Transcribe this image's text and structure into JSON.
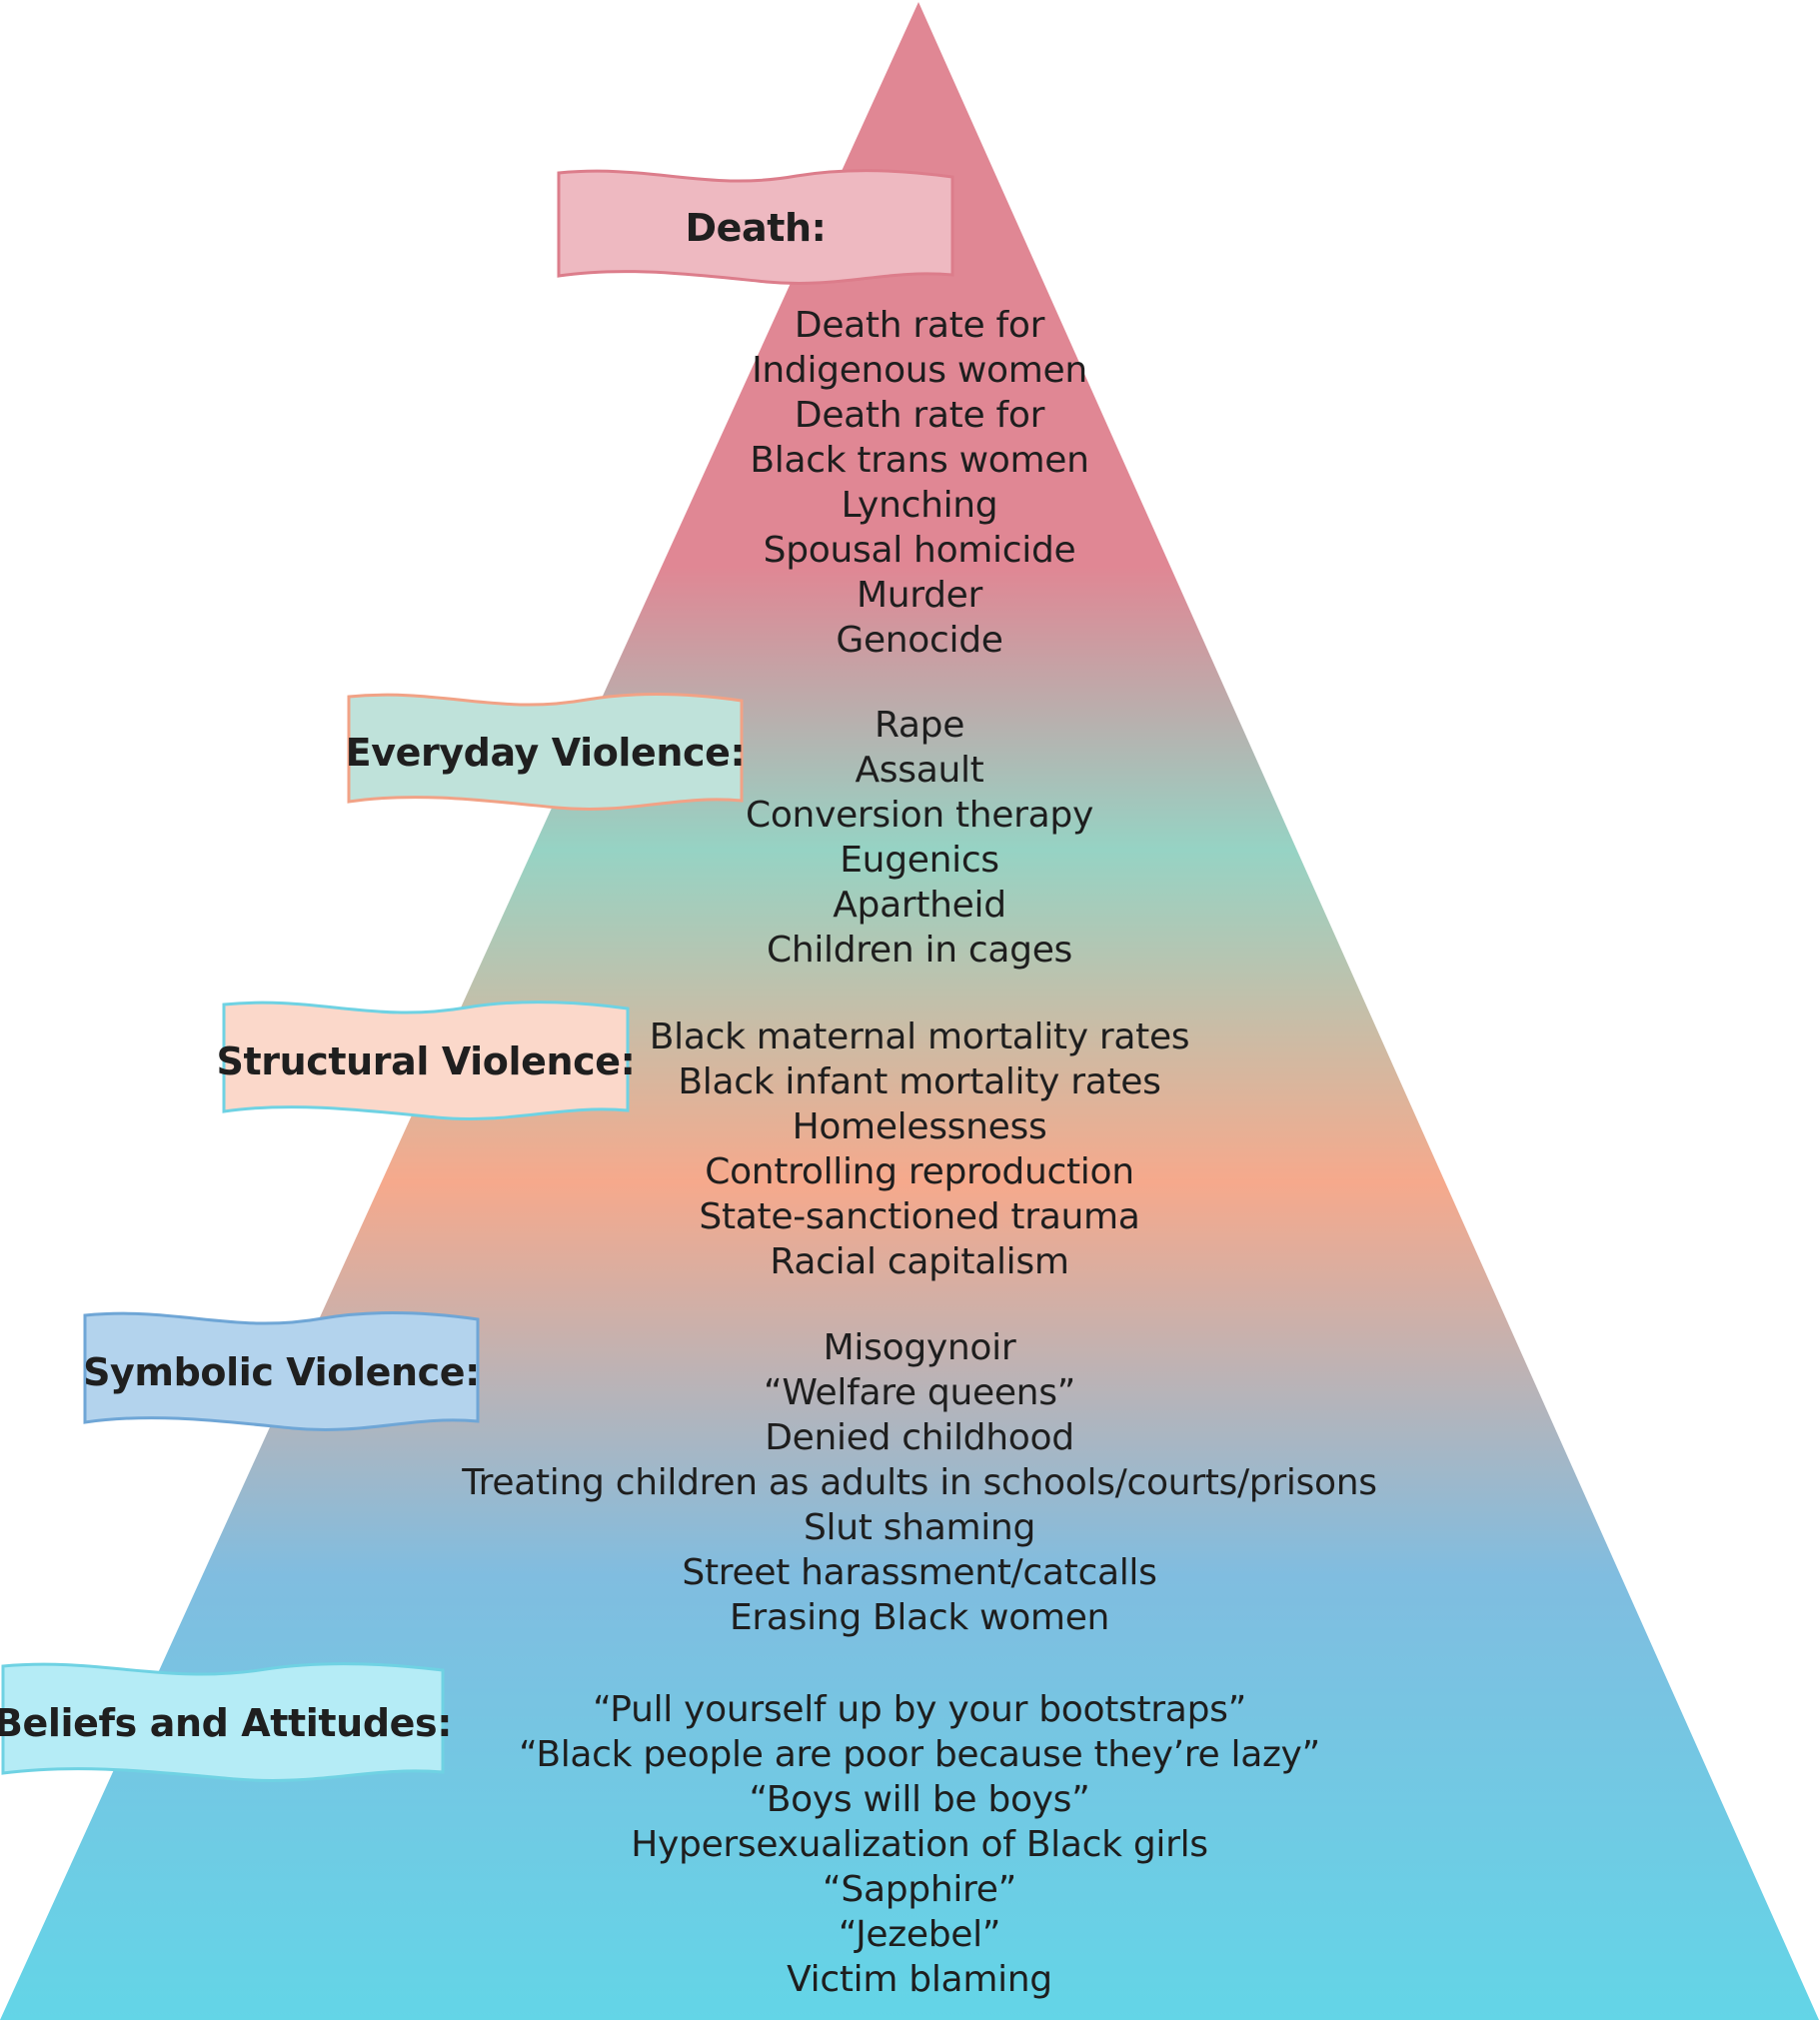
{
  "colors": {
    "top": "#e08794",
    "green": "#96d3c4",
    "orange": "#f6a98c",
    "blue": "#80bde0",
    "bottom": "#63d5e7"
  },
  "levels": [
    {
      "key": "death",
      "label": "Death:",
      "fill": "#eeb9c1",
      "stroke": "#dc7d8b",
      "items": [
        "Death rate for",
        "Indigenous women",
        "Death rate for",
        "Black trans women",
        "Lynching",
        "Spousal homicide",
        "Murder",
        "Genocide"
      ]
    },
    {
      "key": "everyday-violence",
      "label": "Everyday Violence:",
      "fill": "#bfe2da",
      "stroke": "#7dc3b2",
      "items": [
        "Rape",
        "Assault",
        "Conversion therapy",
        "Eugenics",
        "Apartheid",
        "Children in cages"
      ]
    },
    {
      "key": "structural-violence",
      "label": "Structural Violence:",
      "fill": "#fbd8ca",
      "stroke": "#f1a286",
      "items": [
        "Black maternal mortality rates",
        "Black infant mortality rates",
        "Homelessness",
        "Controlling reproduction",
        "State-sanctioned trauma",
        "Racial capitalism"
      ]
    },
    {
      "key": "symbolic-violence",
      "label": "Symbolic Violence:",
      "fill": "#b3d3ed",
      "stroke": "#6fa6d6",
      "items": [
        "Misogynoir",
        "“Welfare queens”",
        "Denied childhood",
        "Treating children as adults in schools/courts/prisons",
        "Slut shaming",
        "Street harassment/catcalls",
        "Erasing Black women"
      ]
    },
    {
      "key": "beliefs-and-attitudes",
      "label": "Beliefs and Attitudes:",
      "fill": "#b5ecf6",
      "stroke": "#6fd2e3",
      "items": [
        "“Pull yourself up by your bootstraps”",
        "“Black people are poor because they’re lazy”",
        "“Boys will be boys”",
        "Hypersexualization of Black girls",
        "“Sapphire”",
        "“Jezebel”",
        "Victim blaming"
      ]
    }
  ]
}
